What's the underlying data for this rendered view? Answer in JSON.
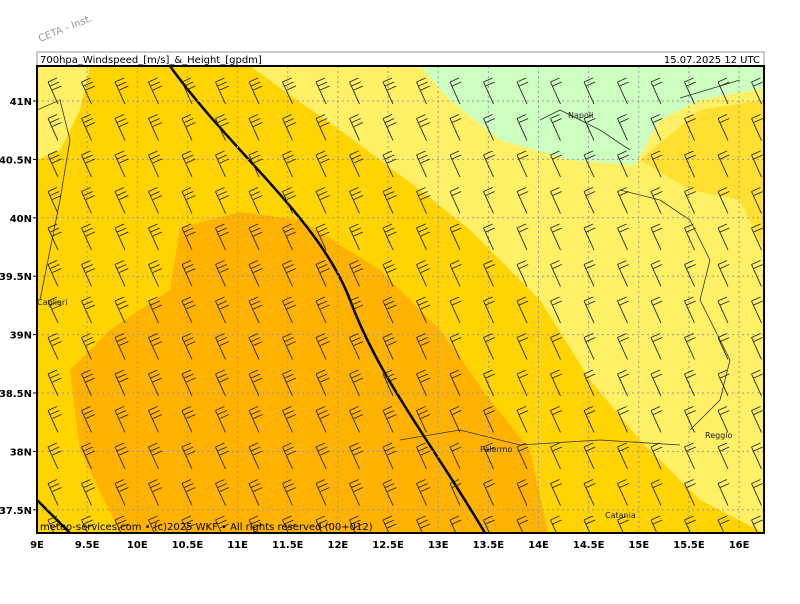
{
  "watermark": "CETA - Inst.",
  "header": {
    "title": "700hpa_Windspeed_[m/s]_&_Height_[gpdm]",
    "date": "15.07.2025 12 UTC"
  },
  "footer": "meteo-services.com • (c)2025 WKF • All rights reserved (00+012)",
  "axes": {
    "lon_labels": [
      "9E",
      "9.5E",
      "10E",
      "10.5E",
      "11E",
      "11.5E",
      "12E",
      "12.5E",
      "13E",
      "13.5E",
      "14E",
      "14.5E",
      "15E",
      "15.5E",
      "16E"
    ],
    "lat_labels": [
      "41N",
      "40.5N",
      "40N",
      "39.5N",
      "39N",
      "38.5N",
      "38N",
      "37.5N"
    ]
  },
  "places": [
    "Napoli",
    "Cagliari",
    "Palermo",
    "Reggio",
    "Catania"
  ]
}
